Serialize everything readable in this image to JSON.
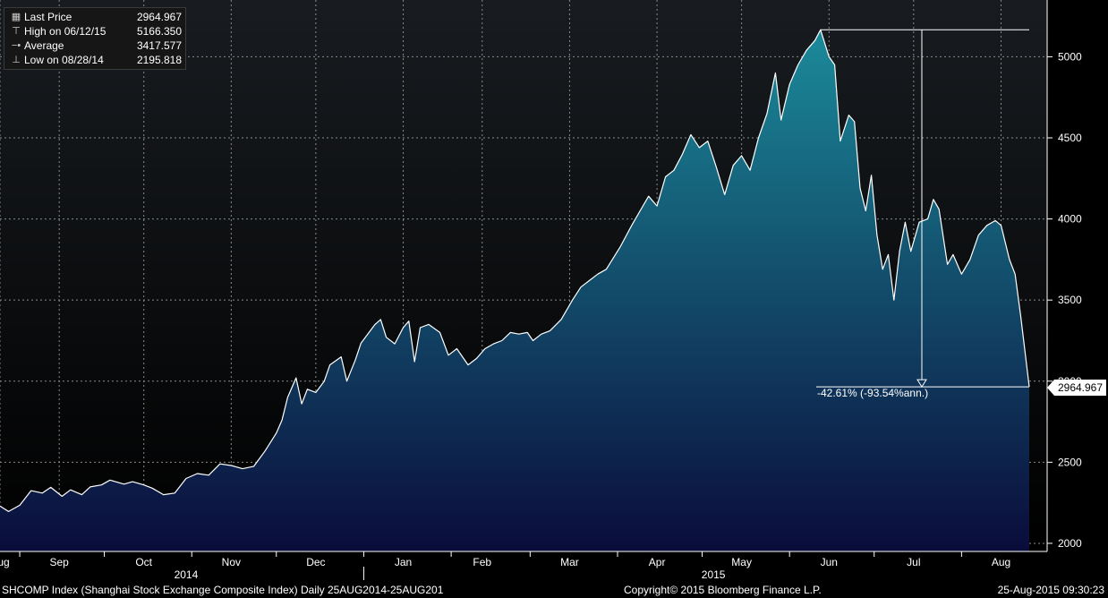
{
  "legend": {
    "items": [
      {
        "icon": "square-icon",
        "label": "Last Price",
        "value": "2964.967"
      },
      {
        "icon": "high-marker-icon",
        "label": "High on 06/12/15",
        "value": "5166.350"
      },
      {
        "icon": "average-marker-icon",
        "label": "Average",
        "value": "3417.577"
      },
      {
        "icon": "low-marker-icon",
        "label": "Low on 08/28/14",
        "value": "2195.818"
      }
    ]
  },
  "last_price_tag": "2964.967",
  "change_annotation": "-42.61% (-93.54%ann.)",
  "footer": {
    "security": "SHCOMP Index (Shanghai Stock Exchange Composite Index)  Daily 25AUG2014-25AUG201",
    "copyright": "Copyright© 2015 Bloomberg Finance L.P.",
    "timestamp": "25-Aug-2015 09:30:23"
  },
  "colors": {
    "background_top": "#181c20",
    "background_bottom": "#000000",
    "fill_top": "#1b8a9a",
    "fill_bottom": "#0a0c3a",
    "line": "#ffffff",
    "grid": "#8a8a8a"
  },
  "chart_data": {
    "type": "area",
    "title": "",
    "xlabel": "",
    "ylabel": "",
    "ylim": [
      1950,
      5350
    ],
    "xlim": [
      "2014-08-25",
      "2015-08-25"
    ],
    "grid": true,
    "y_axis_side": "right",
    "y_ticks": [
      2000,
      2500,
      3000,
      3500,
      4000,
      4500,
      5000
    ],
    "x_ticks": [
      {
        "date": "2014-08-25",
        "label": "Aug"
      },
      {
        "date": "2014-09-15",
        "label": "Sep"
      },
      {
        "date": "2014-10-15",
        "label": "Oct"
      },
      {
        "date": "2014-11-15",
        "label": "Nov"
      },
      {
        "date": "2014-12-15",
        "label": "Dec"
      },
      {
        "date": "2015-01-15",
        "label": "Jan"
      },
      {
        "date": "2015-02-12",
        "label": "Feb"
      },
      {
        "date": "2015-03-15",
        "label": "Mar"
      },
      {
        "date": "2015-04-15",
        "label": "Apr"
      },
      {
        "date": "2015-05-15",
        "label": "May"
      },
      {
        "date": "2015-06-15",
        "label": "Jun"
      },
      {
        "date": "2015-07-15",
        "label": "Jul"
      },
      {
        "date": "2015-08-15",
        "label": "Aug"
      }
    ],
    "year_labels": [
      {
        "date": "2014-10-30",
        "label": "2014"
      },
      {
        "date": "2015-05-05",
        "label": "2015"
      }
    ],
    "year_separator": "2015-01-01",
    "high": {
      "date": "2015-06-12",
      "value": 5166.35
    },
    "last": {
      "date": "2015-08-25",
      "value": 2964.967
    },
    "series": [
      {
        "points": [
          [
            "2014-08-25",
            2230
          ],
          [
            "2014-08-28",
            2196
          ],
          [
            "2014-09-01",
            2235
          ],
          [
            "2014-09-05",
            2325
          ],
          [
            "2014-09-09",
            2310
          ],
          [
            "2014-09-12",
            2345
          ],
          [
            "2014-09-16",
            2290
          ],
          [
            "2014-09-19",
            2330
          ],
          [
            "2014-09-23",
            2300
          ],
          [
            "2014-09-26",
            2348
          ],
          [
            "2014-09-30",
            2360
          ],
          [
            "2014-10-03",
            2390
          ],
          [
            "2014-10-08",
            2365
          ],
          [
            "2014-10-11",
            2380
          ],
          [
            "2014-10-15",
            2360
          ],
          [
            "2014-10-18",
            2340
          ],
          [
            "2014-10-22",
            2300
          ],
          [
            "2014-10-26",
            2310
          ],
          [
            "2014-10-30",
            2400
          ],
          [
            "2014-11-03",
            2430
          ],
          [
            "2014-11-07",
            2420
          ],
          [
            "2014-11-11",
            2490
          ],
          [
            "2014-11-15",
            2480
          ],
          [
            "2014-11-19",
            2460
          ],
          [
            "2014-11-23",
            2475
          ],
          [
            "2014-11-27",
            2570
          ],
          [
            "2014-12-01",
            2680
          ],
          [
            "2014-12-03",
            2760
          ],
          [
            "2014-12-05",
            2900
          ],
          [
            "2014-12-08",
            3020
          ],
          [
            "2014-12-10",
            2860
          ],
          [
            "2014-12-12",
            2950
          ],
          [
            "2014-12-15",
            2930
          ],
          [
            "2014-12-18",
            3000
          ],
          [
            "2014-12-20",
            3100
          ],
          [
            "2014-12-24",
            3150
          ],
          [
            "2014-12-26",
            3000
          ],
          [
            "2014-12-29",
            3130
          ],
          [
            "2014-12-31",
            3234
          ],
          [
            "2015-01-05",
            3350
          ],
          [
            "2015-01-07",
            3380
          ],
          [
            "2015-01-09",
            3270
          ],
          [
            "2015-01-12",
            3230
          ],
          [
            "2015-01-15",
            3330
          ],
          [
            "2015-01-17",
            3370
          ],
          [
            "2015-01-19",
            3120
          ],
          [
            "2015-01-21",
            3330
          ],
          [
            "2015-01-24",
            3350
          ],
          [
            "2015-01-28",
            3300
          ],
          [
            "2015-01-31",
            3160
          ],
          [
            "2015-02-03",
            3200
          ],
          [
            "2015-02-07",
            3100
          ],
          [
            "2015-02-10",
            3140
          ],
          [
            "2015-02-13",
            3200
          ],
          [
            "2015-02-16",
            3230
          ],
          [
            "2015-02-19",
            3250
          ],
          [
            "2015-02-22",
            3300
          ],
          [
            "2015-02-25",
            3290
          ],
          [
            "2015-02-28",
            3300
          ],
          [
            "2015-03-02",
            3250
          ],
          [
            "2015-03-05",
            3290
          ],
          [
            "2015-03-08",
            3310
          ],
          [
            "2015-03-12",
            3380
          ],
          [
            "2015-03-16",
            3500
          ],
          [
            "2015-03-19",
            3580
          ],
          [
            "2015-03-22",
            3620
          ],
          [
            "2015-03-25",
            3660
          ],
          [
            "2015-03-28",
            3690
          ],
          [
            "2015-04-02",
            3830
          ],
          [
            "2015-04-06",
            3960
          ],
          [
            "2015-04-09",
            4050
          ],
          [
            "2015-04-12",
            4140
          ],
          [
            "2015-04-15",
            4080
          ],
          [
            "2015-04-18",
            4260
          ],
          [
            "2015-04-21",
            4300
          ],
          [
            "2015-04-24",
            4400
          ],
          [
            "2015-04-27",
            4520
          ],
          [
            "2015-04-30",
            4440
          ],
          [
            "2015-05-03",
            4480
          ],
          [
            "2015-05-06",
            4320
          ],
          [
            "2015-05-09",
            4150
          ],
          [
            "2015-05-12",
            4330
          ],
          [
            "2015-05-15",
            4390
          ],
          [
            "2015-05-18",
            4300
          ],
          [
            "2015-05-21",
            4500
          ],
          [
            "2015-05-24",
            4650
          ],
          [
            "2015-05-27",
            4900
          ],
          [
            "2015-05-29",
            4610
          ],
          [
            "2015-06-01",
            4830
          ],
          [
            "2015-06-04",
            4950
          ],
          [
            "2015-06-07",
            5040
          ],
          [
            "2015-06-10",
            5100
          ],
          [
            "2015-06-12",
            5166
          ],
          [
            "2015-06-15",
            5000
          ],
          [
            "2015-06-17",
            4950
          ],
          [
            "2015-06-19",
            4480
          ],
          [
            "2015-06-22",
            4640
          ],
          [
            "2015-06-24",
            4600
          ],
          [
            "2015-06-26",
            4190
          ],
          [
            "2015-06-28",
            4050
          ],
          [
            "2015-06-30",
            4270
          ],
          [
            "2015-07-02",
            3900
          ],
          [
            "2015-07-04",
            3690
          ],
          [
            "2015-07-06",
            3780
          ],
          [
            "2015-07-08",
            3500
          ],
          [
            "2015-07-10",
            3800
          ],
          [
            "2015-07-12",
            3980
          ],
          [
            "2015-07-14",
            3800
          ],
          [
            "2015-07-17",
            3980
          ],
          [
            "2015-07-20",
            4000
          ],
          [
            "2015-07-22",
            4120
          ],
          [
            "2015-07-24",
            4060
          ],
          [
            "2015-07-27",
            3720
          ],
          [
            "2015-07-29",
            3780
          ],
          [
            "2015-08-01",
            3660
          ],
          [
            "2015-08-04",
            3750
          ],
          [
            "2015-08-07",
            3900
          ],
          [
            "2015-08-10",
            3960
          ],
          [
            "2015-08-13",
            3990
          ],
          [
            "2015-08-15",
            3960
          ],
          [
            "2015-08-18",
            3750
          ],
          [
            "2015-08-20",
            3660
          ],
          [
            "2015-08-22",
            3400
          ],
          [
            "2015-08-25",
            2965
          ]
        ]
      }
    ]
  }
}
